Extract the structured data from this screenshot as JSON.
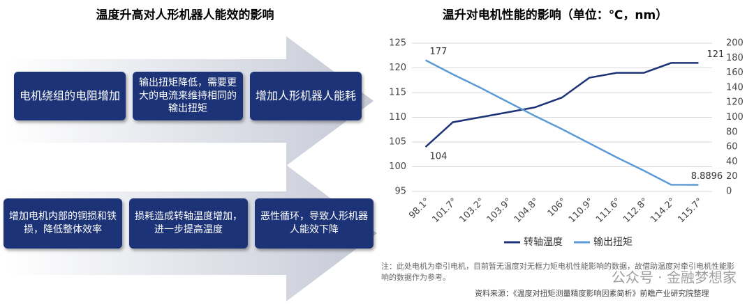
{
  "diagram": {
    "title": "温度升高对人形机器人能效的影响",
    "row1": [
      "电机绕组的电阻增加",
      "输出扭矩降低，需要更大的电流来维持相同的输出扭矩",
      "增加人形机器人能耗"
    ],
    "row2": [
      "增加电机内部的铜损和铁损，降低整体效率",
      "损耗造成转轴温度增加，进一步提高温度",
      "恶性循环，导致人形机器人能效下降"
    ]
  },
  "chart_data": {
    "type": "line",
    "title": "温升对电机性能的影响（单位：℃，nm）",
    "categories": [
      "98.1°",
      "101.7°",
      "103.2°",
      "103.9°",
      "104.8°",
      "106°",
      "110.9°",
      "111.6°",
      "112.8°",
      "114.2°",
      "115.7°"
    ],
    "series": [
      {
        "name": "转轴温度",
        "color": "#1d3377",
        "values": [
          104,
          109,
          110,
          111,
          112,
          114,
          118,
          119,
          119,
          121,
          121
        ]
      },
      {
        "name": "输出扭矩",
        "color": "#5b9bd5",
        "axis": "y2",
        "values": [
          177,
          158,
          140,
          121,
          102,
          84,
          65,
          46,
          28,
          9,
          8.8896
        ]
      }
    ],
    "ylim": [
      95,
      125
    ],
    "yticks": [
      95,
      100,
      105,
      110,
      115,
      120,
      125
    ],
    "y2lim": [
      0,
      200
    ],
    "y2ticks": [
      0,
      20,
      40,
      60,
      80,
      100,
      120,
      140,
      160,
      180,
      200
    ],
    "grid": true,
    "legend": "bottom",
    "note": "注：此处电机为牵引电机，目前暂无温度对无框力矩电机性能影响的数据，故借助温度对牵引电机性能影响的数据作为参考。",
    "source": "资料来源：《温度对扭矩测量精度影响因素简析》前瞻产业研究院整理",
    "watermark": "公众号 · 金融梦想家"
  }
}
